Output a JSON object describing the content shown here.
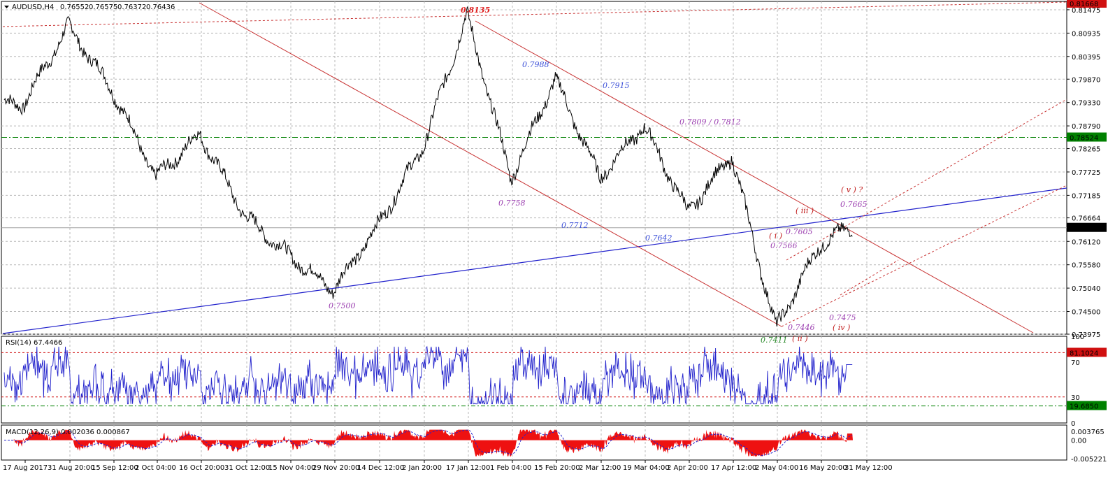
{
  "header": {
    "symbol": "AUDUSD,H4",
    "open": "0.76552",
    "high": "0.76575",
    "low": "0.76372",
    "close": "0.76436"
  },
  "price_axis": {
    "ticks": [
      "0.81475",
      "0.80935",
      "0.80395",
      "0.79870",
      "0.79330",
      "0.78790",
      "0.78265",
      "0.77725",
      "0.77185",
      "0.76664",
      "0.76120",
      "0.75580",
      "0.75040",
      "0.74500",
      "0.73975"
    ],
    "top_label": "0.81668",
    "green_level_label": "0.78524",
    "current_label": "0.76436"
  },
  "rsi": {
    "title": "RSI(14) 67.4466",
    "ticks": [
      "100",
      "70",
      "30",
      "0"
    ],
    "upper_label": "81.1024",
    "lower_label": "19.6850"
  },
  "macd": {
    "title": "MACD(12,26,9) 0.002036 0.000867",
    "ticks": [
      "0.003765",
      "0.00",
      "-0.005221"
    ]
  },
  "time_axis": [
    "17 Aug 2017",
    "31 Aug 20:00",
    "15 Sep 12:00",
    "2 Oct 04:00",
    "16 Oct 20:00",
    "31 Oct 12:00",
    "15 Nov 04:00",
    "29 Nov 20:00",
    "14 Dec 12:00",
    "2 Jan 20:00",
    "17 Jan 12:00",
    "1 Feb 04:00",
    "15 Feb 20:00",
    "2 Mar 12:00",
    "19 Mar 04:00",
    "2 Apr 20:00",
    "17 Apr 12:00",
    "2 May 04:00",
    "16 May 20:00",
    "31 May 12:00"
  ],
  "annotations": [
    {
      "text": "0.8135",
      "color": "#e02020",
      "bold": true
    },
    {
      "text": "0.7988",
      "color": "#3b4fd8"
    },
    {
      "text": "0.7915",
      "color": "#3b4fd8"
    },
    {
      "text": "0.7809 / 0.7812",
      "color": "#9b3fb0"
    },
    {
      "text": "0.7758",
      "color": "#9b3fb0"
    },
    {
      "text": "0.7712",
      "color": "#3b4fd8"
    },
    {
      "text": "0.7642",
      "color": "#3b4fd8"
    },
    {
      "text": "0.7500",
      "color": "#9b3fb0"
    },
    {
      "text": "0.7411",
      "color": "#2a8a2a"
    },
    {
      "text": "0.7446",
      "color": "#9b3fb0"
    },
    {
      "text": "0.7475",
      "color": "#9b3fb0"
    },
    {
      "text": "0.7566",
      "color": "#9b3fb0"
    },
    {
      "text": "0.7605",
      "color": "#9b3fb0"
    },
    {
      "text": "0.7665",
      "color": "#9b3fb0"
    },
    {
      "text": "( i )",
      "color": "#c01818"
    },
    {
      "text": "( ii )",
      "color": "#c01818"
    },
    {
      "text": "( iii )",
      "color": "#c01818"
    },
    {
      "text": "( iv )",
      "color": "#c01818"
    },
    {
      "text": "( v ) ?",
      "color": "#c01818"
    }
  ],
  "chart_data": {
    "type": "line",
    "symbol": "AUDUSD",
    "timeframe": "H4",
    "price_anchors": {
      "x": [
        "17 Aug 2017",
        "31 Aug 20:00",
        "15 Sep 12:00",
        "2 Oct 04:00",
        "16 Oct 20:00",
        "31 Oct 12:00",
        "15 Nov 04:00",
        "29 Nov 20:00",
        "14 Dec 12:00",
        "2 Jan 20:00",
        "17 Jan 12:00",
        "1 Feb 04:00",
        "15 Feb 20:00",
        "2 Mar 12:00",
        "19 Mar 04:00",
        "2 Apr 20:00",
        "17 Apr 12:00",
        "2 May 04:00",
        "16 May 20:00",
        "31 May 12:00"
      ],
      "y": [
        0.793,
        0.811,
        0.796,
        0.776,
        0.786,
        0.767,
        0.758,
        0.75,
        0.765,
        0.783,
        0.8135,
        0.7758,
        0.7988,
        0.776,
        0.788,
        0.768,
        0.781,
        0.7411,
        0.7605,
        0.7665
      ]
    },
    "price_range": [
      0.73975,
      0.81668
    ],
    "levels": {
      "green_dashed": 0.78524,
      "current": 0.76436
    },
    "rsi_range": [
      0,
      100
    ],
    "rsi_levels": [
      81.1024,
      19.685
    ],
    "rsi_value": 67.4466,
    "macd": {
      "main": 0.002036,
      "signal": 0.000867,
      "range": [
        -0.005221,
        0.003765
      ]
    }
  },
  "colors": {
    "price_line": "#000000",
    "channel": "#c83232",
    "trendline": "#2222cc",
    "green_level": "#008000",
    "rsi_line": "#2222cc",
    "macd_hist": "#ee1111",
    "macd_signal": "#2222cc",
    "label_bg": "#000000",
    "label_red_bg": "#d01010",
    "label_green_bg": "#008000"
  }
}
